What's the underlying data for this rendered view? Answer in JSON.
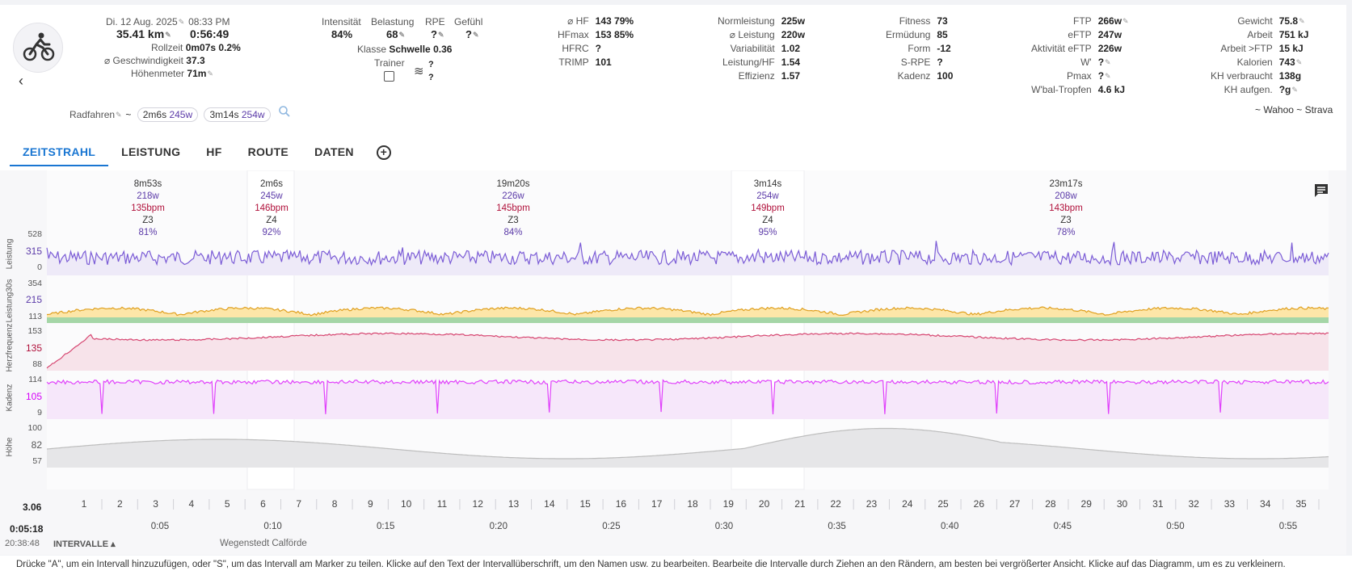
{
  "header": {
    "date": "Di. 12 Aug. 2025",
    "time": "08:33 PM",
    "distance": "35.41 km",
    "duration": "0:56:49",
    "rollzeit_label": "Rollzeit",
    "rollzeit_value": "0m07s 0.2%",
    "speed_label": "⌀ Geschwindigkeit",
    "speed_value": "37.3",
    "elev_label": "Höhenmeter",
    "elev_value": "71m",
    "intensity_label": "Intensität",
    "intensity_value": "84%",
    "load_label": "Belastung",
    "load_value": "68",
    "rpe_label": "RPE",
    "rpe_value": "?",
    "feel_label": "Gefühl",
    "feel_value": "?",
    "class_label": "Klasse",
    "class_value": "Schwelle 0.36",
    "trainer_label": "Trainer",
    "trainer_q1": "?",
    "trainer_q2": "?"
  },
  "metrics_col1": [
    {
      "k": "⌀ HF",
      "v": "143 79%"
    },
    {
      "k": "HFmax",
      "v": "153 85%"
    },
    {
      "k": "HFRC",
      "v": "?"
    },
    {
      "k": "TRIMP",
      "v": "101"
    }
  ],
  "metrics_col2": [
    {
      "k": "Normleistung",
      "v": "225w"
    },
    {
      "k": "⌀ Leistung",
      "v": "220w"
    },
    {
      "k": "Variabilität",
      "v": "1.02"
    },
    {
      "k": "Leistung/HF",
      "v": "1.54"
    },
    {
      "k": "Effizienz",
      "v": "1.57"
    }
  ],
  "metrics_col3": [
    {
      "k": "Fitness",
      "v": "73"
    },
    {
      "k": "Ermüdung",
      "v": "85"
    },
    {
      "k": "Form",
      "v": "-12"
    },
    {
      "k": "S-RPE",
      "v": "?"
    },
    {
      "k": "Kadenz",
      "v": "100"
    }
  ],
  "metrics_col4": [
    {
      "k": "FTP",
      "v": "266w"
    },
    {
      "k": "eFTP",
      "v": "247w"
    },
    {
      "k": "Aktivität eFTP",
      "v": "226w"
    },
    {
      "k": "W'",
      "v": "?"
    },
    {
      "k": "Pmax",
      "v": "?"
    },
    {
      "k": "W'bal-Tropfen",
      "v": "4.6 kJ"
    }
  ],
  "metrics_col5": [
    {
      "k": "Gewicht",
      "v": "75.8"
    },
    {
      "k": "Arbeit",
      "v": "751 kJ"
    },
    {
      "k": "Arbeit >FTP",
      "v": "15 kJ"
    },
    {
      "k": "Kalorien",
      "v": "743"
    },
    {
      "k": "KH verbraucht",
      "v": "138g"
    },
    {
      "k": "KH aufgen.",
      "v": "?g"
    }
  ],
  "tagsrow": {
    "type": "Radfahren",
    "tilde": "~",
    "chip1_time": "2m6s",
    "chip1_w": "245w",
    "chip2_time": "3m14s",
    "chip2_w": "254w",
    "sources": "~ Wahoo ~ Strava"
  },
  "tabs": [
    "ZEITSTRAHL",
    "LEISTUNG",
    "HF",
    "ROUTE",
    "DATEN"
  ],
  "intervals": [
    {
      "t": "8m53s",
      "w": "218w",
      "h": "135bpm",
      "z": "Z3",
      "p": "81%"
    },
    {
      "t": "2m6s",
      "w": "245w",
      "h": "146bpm",
      "z": "Z4",
      "p": "92%"
    },
    {
      "t": "19m20s",
      "w": "226w",
      "h": "145bpm",
      "z": "Z3",
      "p": "84%"
    },
    {
      "t": "3m14s",
      "w": "254w",
      "h": "149bpm",
      "z": "Z4",
      "p": "95%"
    },
    {
      "t": "23m17s",
      "w": "208w",
      "h": "143bpm",
      "z": "Z3",
      "p": "78%"
    }
  ],
  "axes": {
    "leistung": {
      "label": "Leistung",
      "ticks": [
        "528",
        "315",
        "0"
      ]
    },
    "leistung30": {
      "label": "Leistung30s",
      "ticks": [
        "354",
        "215",
        "113"
      ]
    },
    "hf": {
      "label": "Herzfrequenz",
      "ticks": [
        "153",
        "135",
        "88"
      ]
    },
    "kadenz": {
      "label": "Kadenz",
      "ticks": [
        "114",
        "105",
        "9"
      ]
    },
    "hoehe": {
      "label": "Höhe",
      "ticks": [
        "100",
        "82",
        "57"
      ]
    }
  },
  "distance_start": "3.06",
  "distance_ticks": [
    "1",
    "2",
    "3",
    "4",
    "5",
    "6",
    "7",
    "8",
    "9",
    "10",
    "11",
    "12",
    "13",
    "14",
    "15",
    "16",
    "17",
    "18",
    "19",
    "20",
    "21",
    "22",
    "23",
    "24",
    "25",
    "26",
    "27",
    "28",
    "29",
    "30",
    "31",
    "32",
    "33",
    "34",
    "35"
  ],
  "time_start": "0:05:18",
  "time_ticks": [
    "0:05",
    "0:10",
    "0:15",
    "0:20",
    "0:25",
    "0:30",
    "0:35",
    "0:40",
    "0:45",
    "0:50",
    "0:55"
  ],
  "clock": "20:38:48",
  "intervals_button": "INTERVALLE",
  "location": "Wegenstedt Calförde",
  "colors": {
    "power": "#7b5cd6",
    "hr": "#d64570",
    "cadence": "#e040fb",
    "altitude": "#bdbdbd",
    "accent": "#1976d2"
  },
  "footer": "Drücke \"A\", um ein Intervall hinzuzufügen, oder \"S\", um das Intervall am Marker zu teilen. Klicke auf den Text der Intervallüberschrift, um den Namen usw. zu bearbeiten. Bearbeite die Intervalle durch Ziehen an den Rändern, am besten bei vergrößerter Ansicht. Klicke auf das Diagramm, um es zu verkleinern."
}
